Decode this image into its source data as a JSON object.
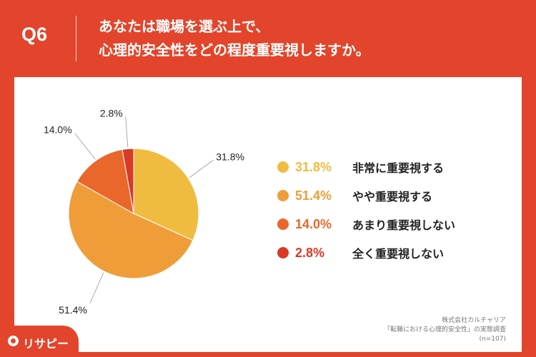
{
  "header": {
    "question_number": "Q6",
    "question_line1": "あなたは職場を選ぶ上で、",
    "question_line2": "心理的安全性をどの程度重要視しますか。"
  },
  "chart_data": {
    "type": "pie",
    "start_angle_deg": 0,
    "slices": [
      {
        "label": "非常に重要視する",
        "value": 31.8,
        "value_label": "31.8%",
        "color": "#f0bc40"
      },
      {
        "label": "やや重要視する",
        "value": 51.4,
        "value_label": "51.4%",
        "color": "#ef9d38"
      },
      {
        "label": "あまり重要視しない",
        "value": 14.0,
        "value_label": "14.0%",
        "color": "#e9672b"
      },
      {
        "label": "全く重要視しない",
        "value": 2.8,
        "value_label": "2.8%",
        "color": "#d93a26"
      }
    ],
    "legend_position": "right"
  },
  "source": {
    "line1": "株式会社カルチャリア",
    "line2": "「転職における心理的安全性」の実態調査",
    "line3": "(n=107)"
  },
  "logo": {
    "text": "リサピー"
  }
}
